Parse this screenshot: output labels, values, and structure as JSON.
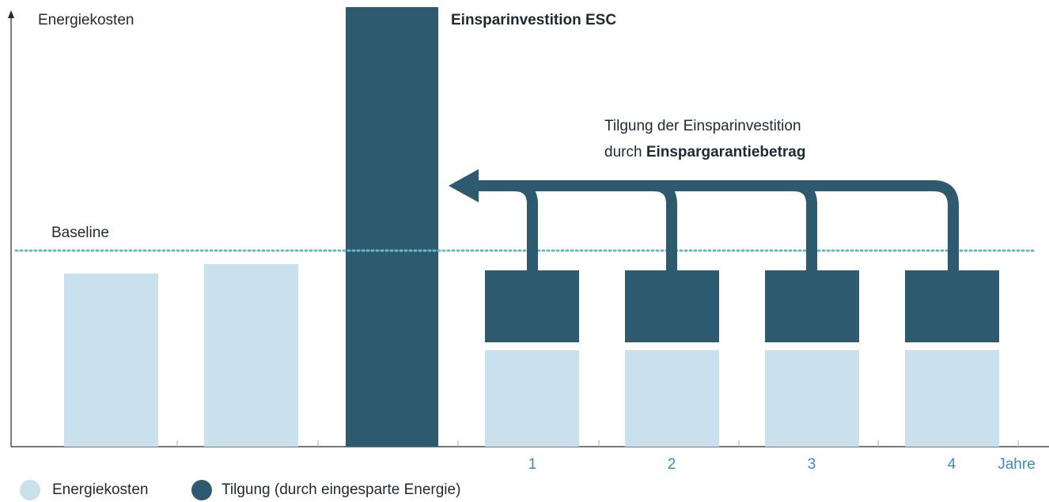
{
  "axis": {
    "y_label": "Energiekosten",
    "x_label": "Jahre",
    "years": [
      "1",
      "2",
      "3",
      "4"
    ]
  },
  "baseline": "Baseline",
  "investment": "Einsparinvestition ESC",
  "repayment": {
    "line1": "Tilgung der Einsparinvestition",
    "line2_prefix": "durch",
    "line2_bold": "Einspargarantiebetrag"
  },
  "legend": [
    "Energiekosten",
    "Tilgung (durch eingesparte Energie)"
  ]
}
